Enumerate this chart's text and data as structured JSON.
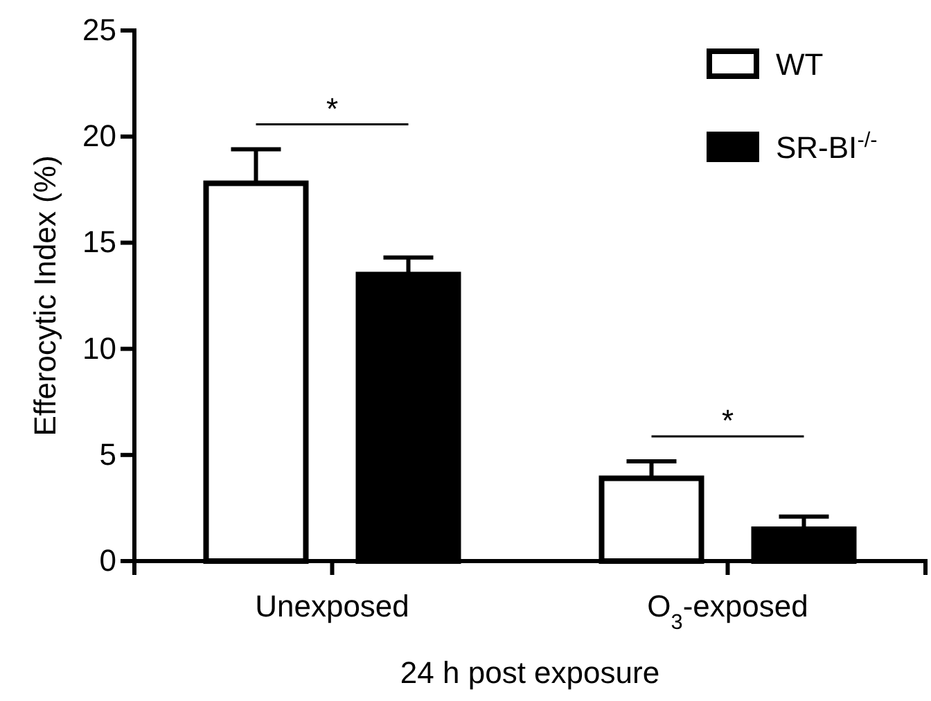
{
  "chart_data": {
    "type": "bar",
    "categories": [
      "Unexposed",
      "O$_{3}$-exposed"
    ],
    "xlabel": "24 h post exposure",
    "ylabel": "Efferocytic Index (%)",
    "ylim": [
      0,
      25
    ],
    "yticks": [
      0,
      5,
      10,
      15,
      20,
      25
    ],
    "series": [
      {
        "name": "WT",
        "color": "#ffffff",
        "values": [
          17.8,
          3.9
        ],
        "errors": [
          [
            17.8,
            19.4
          ],
          [
            3.9,
            4.7
          ]
        ]
      },
      {
        "name": "SR-BI$^{-/-}$",
        "color": "#000000",
        "values": [
          13.5,
          1.5
        ],
        "errors": [
          [
            13.5,
            14.3
          ],
          [
            1.5,
            2.1
          ]
        ]
      }
    ],
    "annotations": [
      "*",
      "*"
    ],
    "legend": "top right",
    "grid": false
  }
}
